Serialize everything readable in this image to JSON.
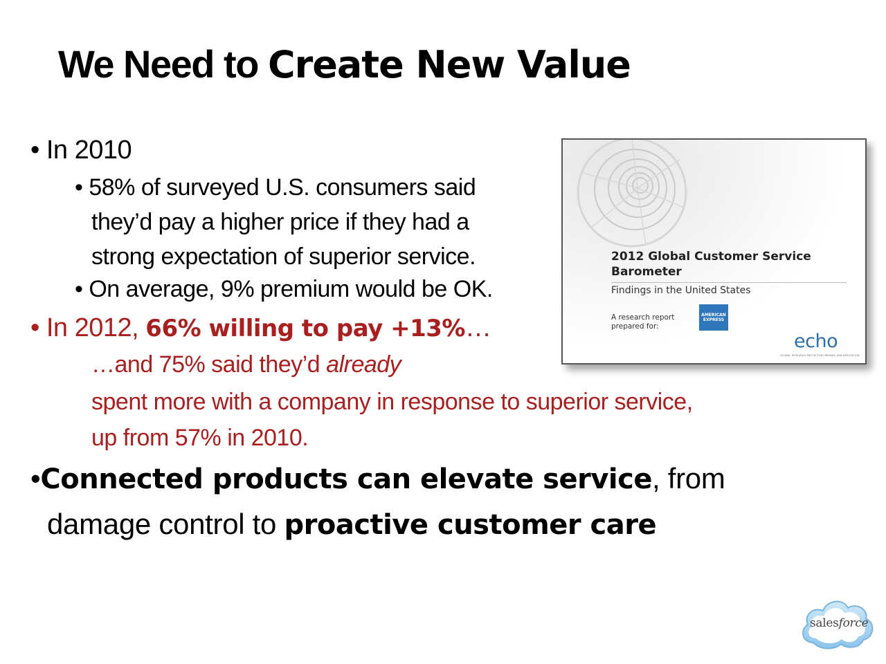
{
  "slide": {
    "title_a": "We Need to",
    "title_b": "Create New Value",
    "b1": {
      "bullet": "•",
      "text": "In 2010"
    },
    "b1_1": {
      "bullet": "•",
      "line1": "58% of surveyed U.S. consumers said",
      "line2": "they’d pay a higher price if they had a",
      "line3": "strong expectation of superior service."
    },
    "b1_2": {
      "bullet": "•",
      "text": "On average, 9% premium would be OK."
    },
    "b2": {
      "bullet": "•",
      "pre": "In 2012, ",
      "bold": "66% willing to pay +13%",
      "post": "…",
      "line2_pre": "…and 75% said they’d ",
      "line2_em": "already",
      "line3": "spent more with a company in response to superior service,",
      "line4": "up from 57% in 2010."
    },
    "b3": {
      "bullet": "•",
      "bold1": "Connected products can elevate service",
      "mid": ", from",
      "line2_pre": "damage control to ",
      "bold2": "proactive customer care"
    }
  },
  "report": {
    "title_line1": "2012 Global Customer Service",
    "title_line2": "Barometer",
    "subtitle": "Findings in the United States",
    "prepared_line1": "A research report",
    "prepared_line2": "prepared for:",
    "amex_line1": "AMERICAN",
    "amex_line2": "EXPRESS",
    "brand": "echo",
    "tagline": "GLOBAL RESEARCH PROTECTING BRANDS AND REPUTATION"
  },
  "logo": {
    "word_a": "sales",
    "word_b": "force"
  },
  "colors": {
    "red": "#a91e1e",
    "cloud": "#9fd0f0",
    "amex_blue": "#2e77bb",
    "echo_blue": "#2f6fa6"
  }
}
